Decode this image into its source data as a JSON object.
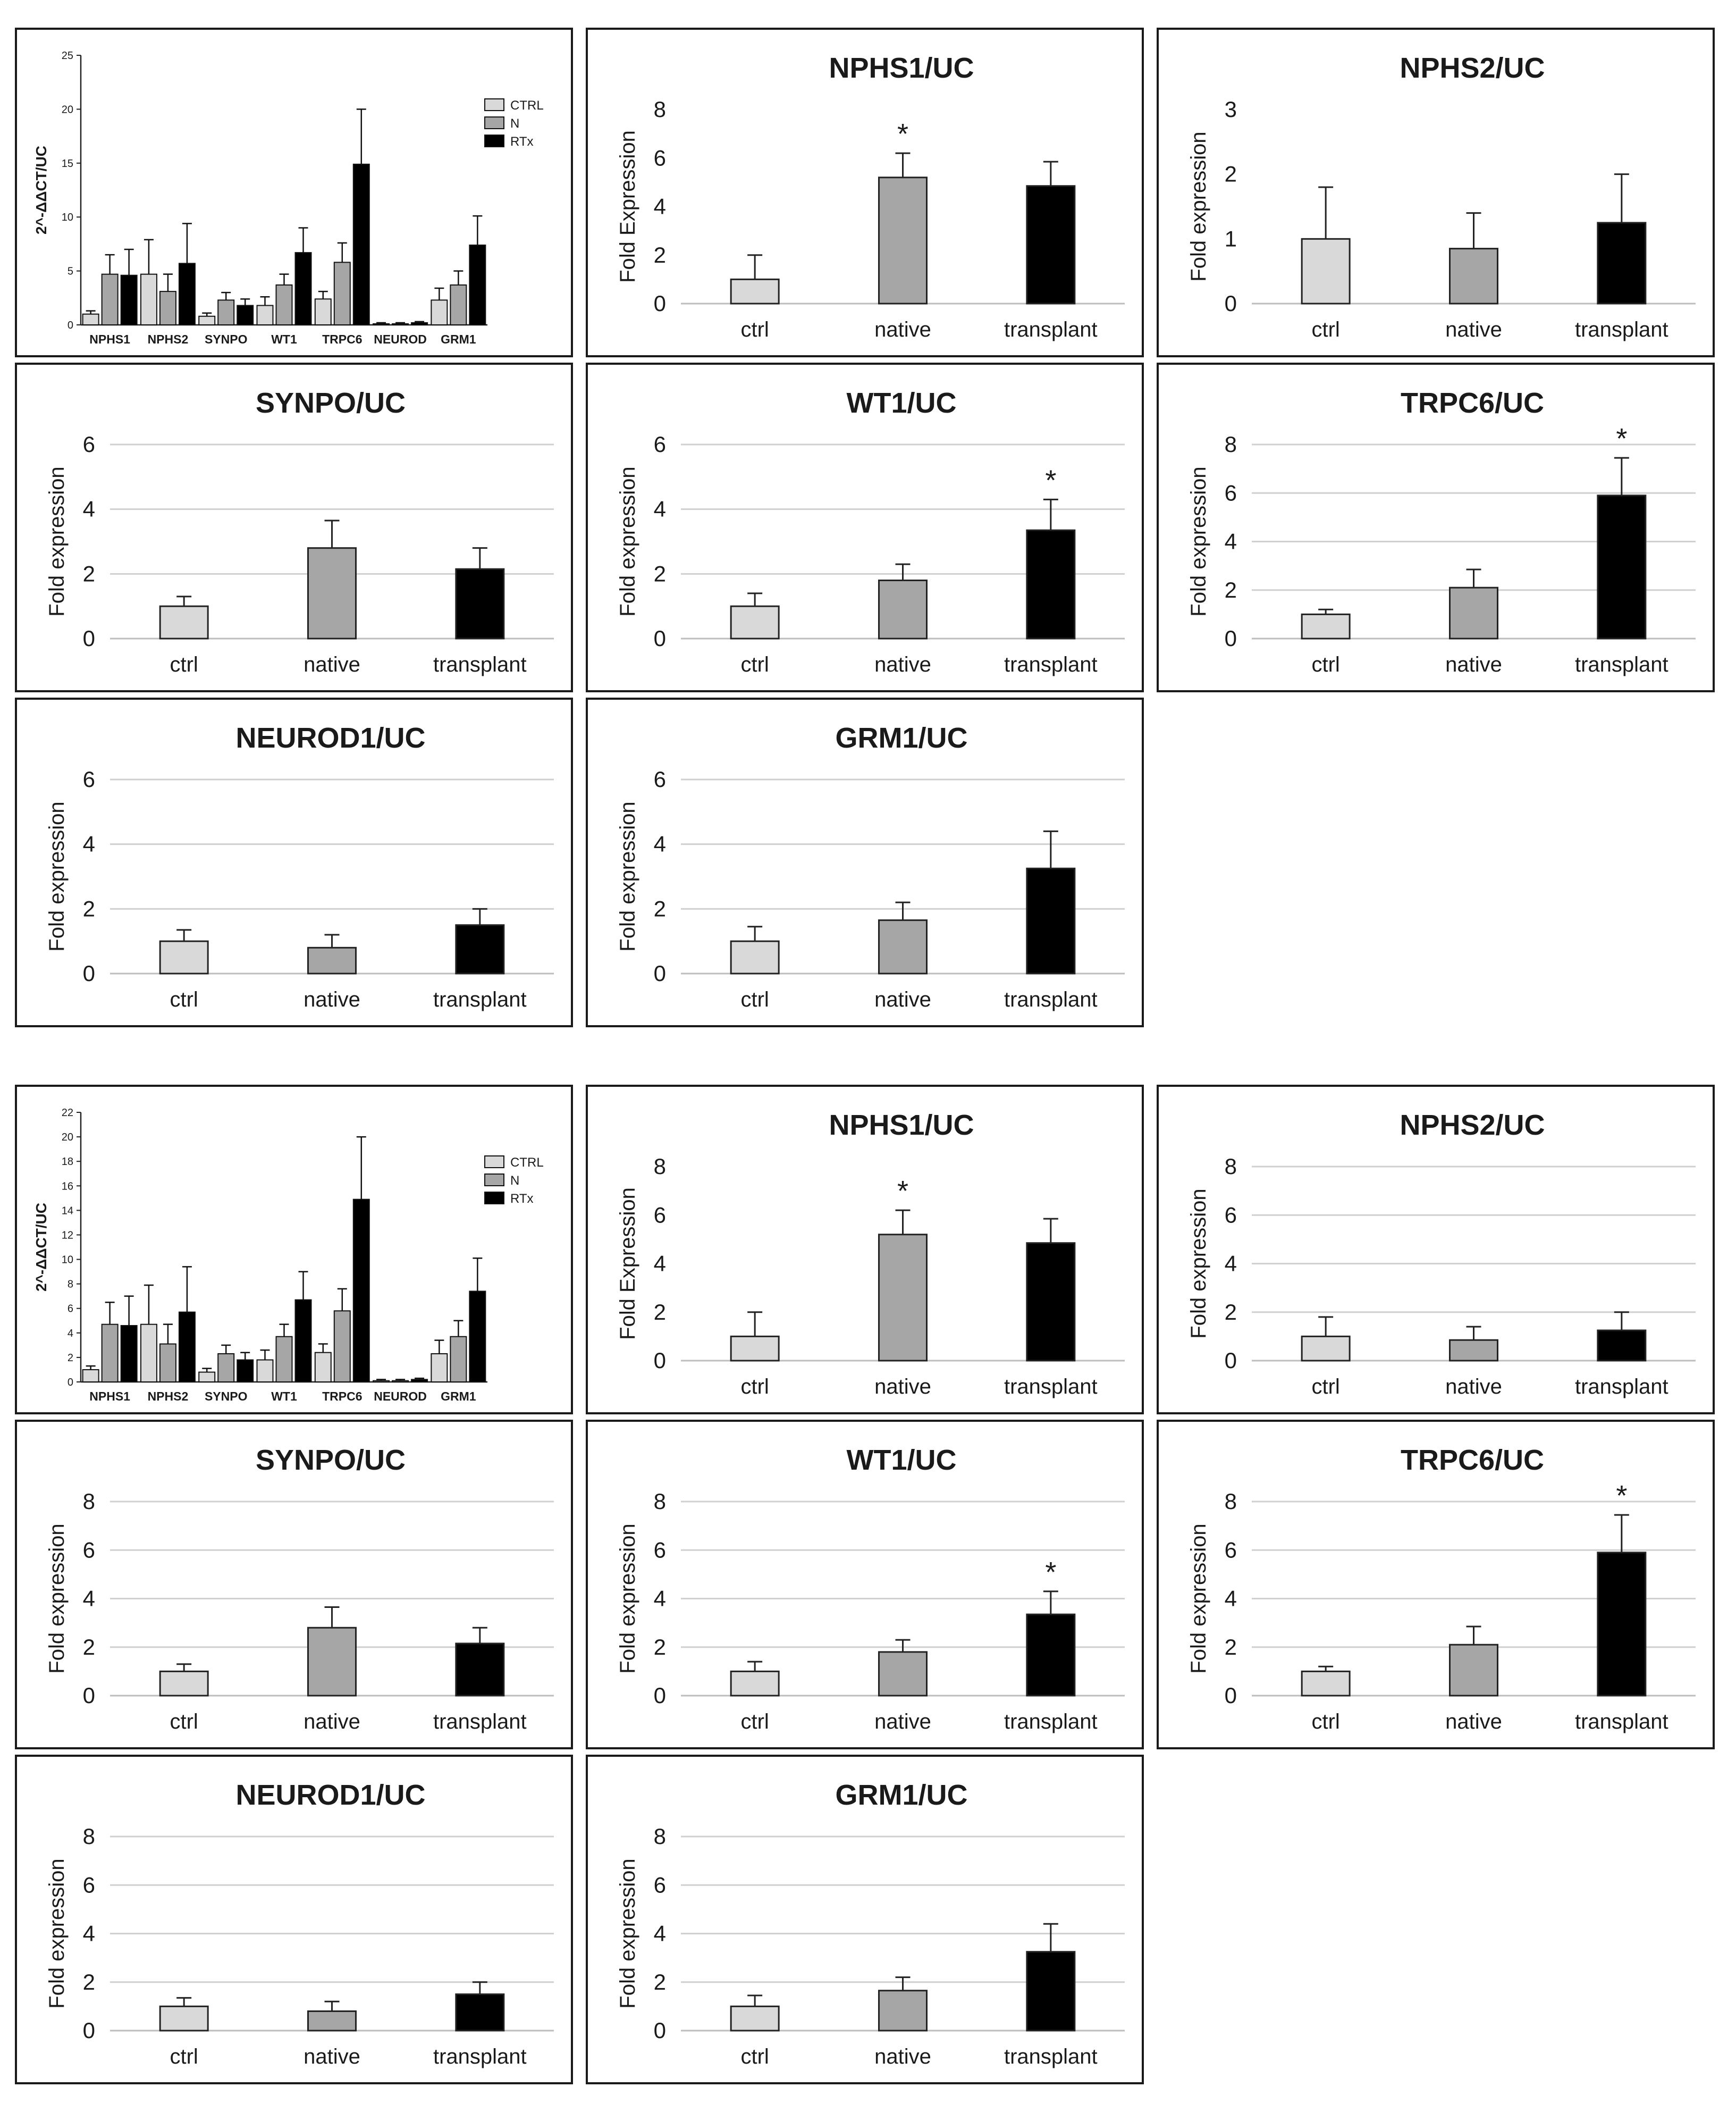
{
  "figure_sections": [
    {
      "chart_data": [
        {
          "type": "bar",
          "kind": "overview",
          "categories": [
            "NPHS1",
            "NPHS2",
            "SYNPO",
            "WT1",
            "TRPC6",
            "NEUROD",
            "GRM1"
          ],
          "ylabel": "2^-ΔΔCT/UC",
          "ylim": [
            0,
            25
          ],
          "yticks": [
            0,
            5,
            10,
            15,
            20,
            25
          ],
          "legend_position": "top-right",
          "series": [
            {
              "name": "CTRL",
              "color": "#d9d9d9",
              "values": [
                1.0,
                4.7,
                0.8,
                1.8,
                2.4,
                0.1,
                2.3
              ],
              "errors": [
                0.3,
                3.2,
                0.3,
                0.8,
                0.7,
                0.1,
                1.1
              ]
            },
            {
              "name": "N",
              "color": "#a6a6a6",
              "values": [
                4.7,
                3.1,
                2.3,
                3.7,
                5.8,
                0.1,
                3.7
              ],
              "errors": [
                1.8,
                1.6,
                0.7,
                1.0,
                1.8,
                0.1,
                1.3
              ]
            },
            {
              "name": "RTx",
              "color": "#000000",
              "values": [
                4.6,
                5.7,
                1.8,
                6.7,
                14.9,
                0.2,
                7.4
              ],
              "errors": [
                2.4,
                3.7,
                0.6,
                2.3,
                5.1,
                0.1,
                2.7
              ]
            }
          ]
        },
        {
          "type": "bar",
          "title": "NPHS1/UC",
          "ylabel": "Fold Expression",
          "categories": [
            "ctrl",
            "native",
            "transplant"
          ],
          "values": [
            1.0,
            5.2,
            4.85
          ],
          "errors": [
            1.0,
            1.0,
            1.0
          ],
          "colors": [
            "#d9d9d9",
            "#a6a6a6",
            "#000000"
          ],
          "ylim": [
            0,
            8
          ],
          "yticks": [
            0,
            2,
            4,
            6,
            8
          ],
          "significance": [
            "",
            "*",
            ""
          ],
          "grid": false
        },
        {
          "type": "bar",
          "title": "NPHS2/UC",
          "ylabel": "Fold expression",
          "categories": [
            "ctrl",
            "native",
            "transplant"
          ],
          "values": [
            1.0,
            0.85,
            1.25
          ],
          "errors": [
            0.8,
            0.55,
            0.75
          ],
          "colors": [
            "#d9d9d9",
            "#a6a6a6",
            "#000000"
          ],
          "ylim": [
            0,
            3
          ],
          "yticks": [
            0,
            1,
            2,
            3
          ],
          "significance": [
            "",
            "",
            ""
          ],
          "grid": false
        },
        {
          "type": "bar",
          "title": "SYNPO/UC",
          "ylabel": "Fold expression",
          "categories": [
            "ctrl",
            "native",
            "transplant"
          ],
          "values": [
            1.0,
            2.8,
            2.15
          ],
          "errors": [
            0.3,
            0.85,
            0.65
          ],
          "colors": [
            "#d9d9d9",
            "#a6a6a6",
            "#000000"
          ],
          "ylim": [
            0,
            6
          ],
          "yticks": [
            0,
            2,
            4,
            6
          ],
          "significance": [
            "",
            "",
            ""
          ],
          "grid": true
        },
        {
          "type": "bar",
          "title": "WT1/UC",
          "ylabel": "Fold expression",
          "categories": [
            "ctrl",
            "native",
            "transplant"
          ],
          "values": [
            1.0,
            1.8,
            3.35
          ],
          "errors": [
            0.4,
            0.5,
            0.95
          ],
          "colors": [
            "#d9d9d9",
            "#a6a6a6",
            "#000000"
          ],
          "ylim": [
            0,
            6
          ],
          "yticks": [
            0,
            2,
            4,
            6
          ],
          "significance": [
            "",
            "",
            "*"
          ],
          "grid": true
        },
        {
          "type": "bar",
          "title": "TRPC6/UC",
          "ylabel": "Fold expression",
          "categories": [
            "ctrl",
            "native",
            "transplant"
          ],
          "values": [
            1.0,
            2.1,
            5.9
          ],
          "errors": [
            0.2,
            0.75,
            1.55
          ],
          "colors": [
            "#d9d9d9",
            "#a6a6a6",
            "#000000"
          ],
          "ylim": [
            0,
            8
          ],
          "yticks": [
            0,
            2,
            4,
            6,
            8
          ],
          "significance": [
            "",
            "",
            "*"
          ],
          "grid": true
        },
        {
          "type": "bar",
          "title": "NEUROD1/UC",
          "ylabel": "Fold expression",
          "categories": [
            "ctrl",
            "native",
            "transplant"
          ],
          "values": [
            1.0,
            0.8,
            1.5
          ],
          "errors": [
            0.35,
            0.4,
            0.5
          ],
          "colors": [
            "#d9d9d9",
            "#a6a6a6",
            "#000000"
          ],
          "ylim": [
            0,
            6
          ],
          "yticks": [
            0,
            2,
            4,
            6
          ],
          "significance": [
            "",
            "",
            ""
          ],
          "grid": true
        },
        {
          "type": "bar",
          "title": "GRM1/UC",
          "ylabel": "Fold expression",
          "categories": [
            "ctrl",
            "native",
            "transplant"
          ],
          "values": [
            1.0,
            1.65,
            3.25
          ],
          "errors": [
            0.45,
            0.55,
            1.15
          ],
          "colors": [
            "#d9d9d9",
            "#a6a6a6",
            "#000000"
          ],
          "ylim": [
            0,
            6
          ],
          "yticks": [
            0,
            2,
            4,
            6
          ],
          "significance": [
            "",
            "",
            ""
          ],
          "grid": true
        }
      ]
    },
    {
      "chart_data": [
        {
          "type": "bar",
          "kind": "overview",
          "categories": [
            "NPHS1",
            "NPHS2",
            "SYNPO",
            "WT1",
            "TRPC6",
            "NEUROD",
            "GRM1"
          ],
          "ylabel": "2^-ΔΔCT/UC",
          "ylim": [
            0,
            22
          ],
          "yticks": [
            0,
            2,
            4,
            6,
            8,
            10,
            12,
            14,
            16,
            18,
            20,
            22
          ],
          "legend_position": "top-right",
          "series": [
            {
              "name": "CTRL",
              "color": "#d9d9d9",
              "values": [
                1.0,
                4.7,
                0.8,
                1.8,
                2.4,
                0.1,
                2.3
              ],
              "errors": [
                0.3,
                3.2,
                0.3,
                0.8,
                0.7,
                0.1,
                1.1
              ]
            },
            {
              "name": "N",
              "color": "#a6a6a6",
              "values": [
                4.7,
                3.1,
                2.3,
                3.7,
                5.8,
                0.1,
                3.7
              ],
              "errors": [
                1.8,
                1.6,
                0.7,
                1.0,
                1.8,
                0.1,
                1.3
              ]
            },
            {
              "name": "RTx",
              "color": "#000000",
              "values": [
                4.6,
                5.7,
                1.8,
                6.7,
                14.9,
                0.2,
                7.4
              ],
              "errors": [
                2.4,
                3.7,
                0.6,
                2.3,
                5.1,
                0.1,
                2.7
              ]
            }
          ]
        },
        {
          "type": "bar",
          "title": "NPHS1/UC",
          "ylabel": "Fold Expression",
          "categories": [
            "ctrl",
            "native",
            "transplant"
          ],
          "values": [
            1.0,
            5.2,
            4.85
          ],
          "errors": [
            1.0,
            1.0,
            1.0
          ],
          "colors": [
            "#d9d9d9",
            "#a6a6a6",
            "#000000"
          ],
          "ylim": [
            0,
            8
          ],
          "yticks": [
            0,
            2,
            4,
            6,
            8
          ],
          "significance": [
            "",
            "*",
            ""
          ],
          "grid": false
        },
        {
          "type": "bar",
          "title": "NPHS2/UC",
          "ylabel": "Fold expression",
          "categories": [
            "ctrl",
            "native",
            "transplant"
          ],
          "values": [
            1.0,
            0.85,
            1.25
          ],
          "errors": [
            0.8,
            0.55,
            0.75
          ],
          "colors": [
            "#d9d9d9",
            "#a6a6a6",
            "#000000"
          ],
          "ylim": [
            0,
            8
          ],
          "yticks": [
            0,
            2,
            4,
            6,
            8
          ],
          "significance": [
            "",
            "",
            ""
          ],
          "grid": true
        },
        {
          "type": "bar",
          "title": "SYNPO/UC",
          "ylabel": "Fold expression",
          "categories": [
            "ctrl",
            "native",
            "transplant"
          ],
          "values": [
            1.0,
            2.8,
            2.15
          ],
          "errors": [
            0.3,
            0.85,
            0.65
          ],
          "colors": [
            "#d9d9d9",
            "#a6a6a6",
            "#000000"
          ],
          "ylim": [
            0,
            8
          ],
          "yticks": [
            0,
            2,
            4,
            6,
            8
          ],
          "significance": [
            "",
            "",
            ""
          ],
          "grid": true
        },
        {
          "type": "bar",
          "title": "WT1/UC",
          "ylabel": "Fold expression",
          "categories": [
            "ctrl",
            "native",
            "transplant"
          ],
          "values": [
            1.0,
            1.8,
            3.35
          ],
          "errors": [
            0.4,
            0.5,
            0.95
          ],
          "colors": [
            "#d9d9d9",
            "#a6a6a6",
            "#000000"
          ],
          "ylim": [
            0,
            8
          ],
          "yticks": [
            0,
            2,
            4,
            6,
            8
          ],
          "significance": [
            "",
            "",
            "*"
          ],
          "grid": true
        },
        {
          "type": "bar",
          "title": "TRPC6/UC",
          "ylabel": "Fold expression",
          "categories": [
            "ctrl",
            "native",
            "transplant"
          ],
          "values": [
            1.0,
            2.1,
            5.9
          ],
          "errors": [
            0.2,
            0.75,
            1.55
          ],
          "colors": [
            "#d9d9d9",
            "#a6a6a6",
            "#000000"
          ],
          "ylim": [
            0,
            8
          ],
          "yticks": [
            0,
            2,
            4,
            6,
            8
          ],
          "significance": [
            "",
            "",
            "*"
          ],
          "grid": true
        },
        {
          "type": "bar",
          "title": "NEUROD1/UC",
          "ylabel": "Fold expression",
          "categories": [
            "ctrl",
            "native",
            "transplant"
          ],
          "values": [
            1.0,
            0.8,
            1.5
          ],
          "errors": [
            0.35,
            0.4,
            0.5
          ],
          "colors": [
            "#d9d9d9",
            "#a6a6a6",
            "#000000"
          ],
          "ylim": [
            0,
            8
          ],
          "yticks": [
            0,
            2,
            4,
            6,
            8
          ],
          "significance": [
            "",
            "",
            ""
          ],
          "grid": true
        },
        {
          "type": "bar",
          "title": "GRM1/UC",
          "ylabel": "Fold expression",
          "categories": [
            "ctrl",
            "native",
            "transplant"
          ],
          "values": [
            1.0,
            1.65,
            3.25
          ],
          "errors": [
            0.45,
            0.55,
            1.15
          ],
          "colors": [
            "#d9d9d9",
            "#a6a6a6",
            "#000000"
          ],
          "ylim": [
            0,
            8
          ],
          "yticks": [
            0,
            2,
            4,
            6,
            8
          ],
          "significance": [
            "",
            "",
            ""
          ],
          "grid": true
        }
      ]
    }
  ]
}
